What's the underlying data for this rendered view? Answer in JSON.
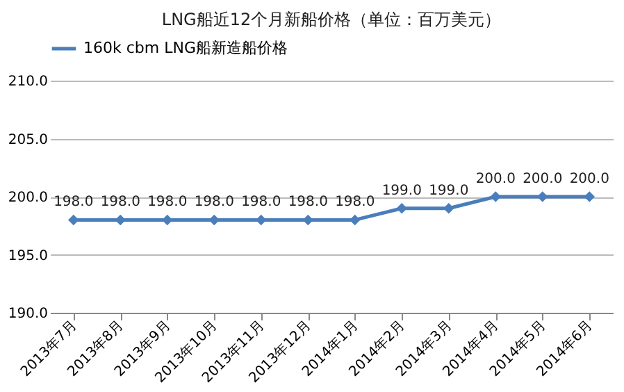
{
  "chart_data": {
    "type": "line",
    "title": "LNG船近12个月新船价格（单位：百万美元）",
    "categories": [
      "2013年7月",
      "2013年8月",
      "2013年9月",
      "2013年10月",
      "2013年11月",
      "2013年12月",
      "2014年1月",
      "2014年2月",
      "2014年3月",
      "2014年4月",
      "2014年5月",
      "2014年6月"
    ],
    "series": [
      {
        "name": "160k cbm LNG船新造船价格",
        "color": "#4a7ebb",
        "values": [
          198.0,
          198.0,
          198.0,
          198.0,
          198.0,
          198.0,
          198.0,
          199.0,
          199.0,
          200.0,
          200.0,
          200.0
        ]
      }
    ],
    "ylim": [
      190,
      210
    ],
    "yticks": [
      {
        "value": 190,
        "label": "190.0"
      },
      {
        "value": 195,
        "label": "195.0"
      },
      {
        "value": 200,
        "label": "200.0"
      },
      {
        "value": 205,
        "label": "205.0"
      },
      {
        "value": 210,
        "label": "210.0"
      }
    ],
    "grid": "y",
    "legend": "top",
    "marker": "diamond",
    "line_style": "solid",
    "value_labels": [
      "198.0",
      "198.0",
      "198.0",
      "198.0",
      "198.0",
      "198.0",
      "198.0",
      "199.0",
      "199.0",
      "200.0",
      "200.0",
      "200.0"
    ]
  }
}
